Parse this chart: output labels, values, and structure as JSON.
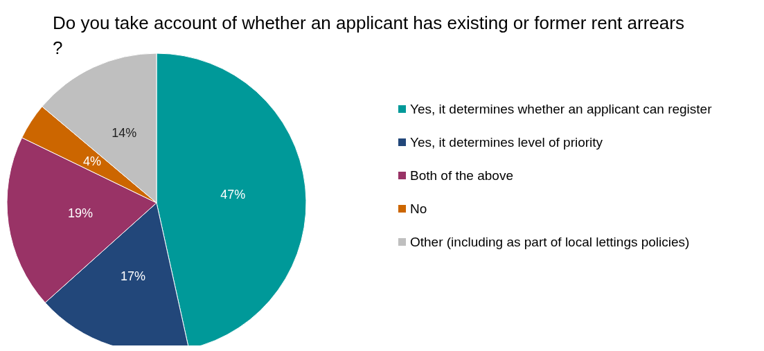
{
  "chart_data": {
    "type": "pie",
    "title": "Do you take account of whether an applicant has existing or former rent arrears?",
    "categories": [
      "Yes, it determines whether an applicant can register",
      "Yes, it determines level of priority",
      "Both of the above",
      "No",
      "Other (including as part of local lettings policies)"
    ],
    "values": [
      47,
      17,
      19,
      4,
      14
    ],
    "colors": [
      "#009999",
      "#22477a",
      "#993366",
      "#cc6600",
      "#bfbfbf"
    ],
    "value_labels": [
      "47%",
      "17%",
      "19%",
      "4%",
      "14%"
    ],
    "legend": "right"
  }
}
